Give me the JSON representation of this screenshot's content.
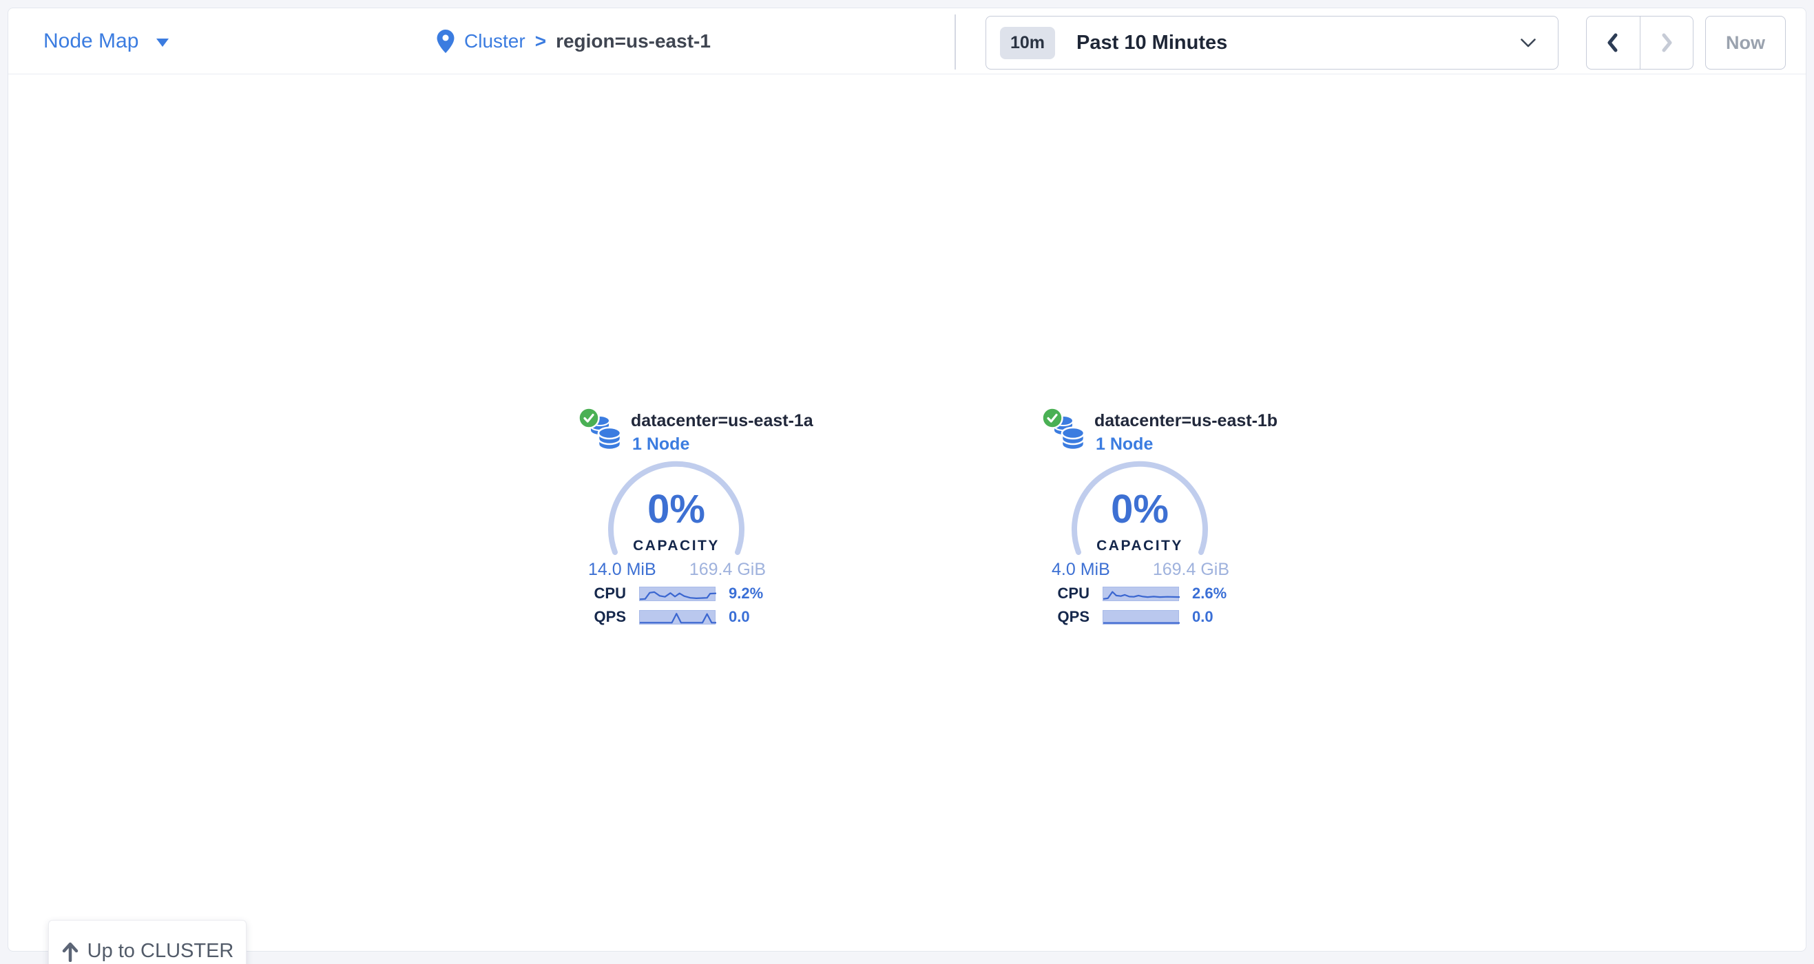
{
  "header": {
    "view_selector": {
      "label": "Node Map"
    },
    "breadcrumb": {
      "root": "Cluster",
      "separator": ">",
      "current": "region=us-east-1"
    },
    "time_range": {
      "badge": "10m",
      "label": "Past 10 Minutes"
    },
    "now_button": "Now"
  },
  "datacenters": [
    {
      "name": "datacenter=us-east-1a",
      "nodes": "1 Node",
      "status": "healthy",
      "capacity": {
        "percent": "0%",
        "label": "CAPACITY",
        "used": "14.0 MiB",
        "total": "169.4 GiB"
      },
      "metrics": [
        {
          "label": "CPU",
          "value": "9.2%",
          "spark": [
            [
              0,
              88
            ],
            [
              7,
              85
            ],
            [
              13,
              35
            ],
            [
              19,
              30
            ],
            [
              26,
              60
            ],
            [
              33,
              68
            ],
            [
              40,
              38
            ],
            [
              46,
              66
            ],
            [
              52,
              40
            ],
            [
              58,
              62
            ],
            [
              66,
              76
            ],
            [
              74,
              80
            ],
            [
              82,
              78
            ],
            [
              88,
              76
            ],
            [
              92,
              42
            ],
            [
              100,
              40
            ]
          ]
        },
        {
          "label": "QPS",
          "value": "0.0",
          "spark": [
            [
              0,
              88
            ],
            [
              42,
              88
            ],
            [
              48,
              15
            ],
            [
              54,
              88
            ],
            [
              82,
              88
            ],
            [
              88,
              18
            ],
            [
              94,
              88
            ],
            [
              100,
              88
            ]
          ]
        }
      ]
    },
    {
      "name": "datacenter=us-east-1b",
      "nodes": "1 Node",
      "status": "healthy",
      "capacity": {
        "percent": "0%",
        "label": "CAPACITY",
        "used": "4.0 MiB",
        "total": "169.4 GiB"
      },
      "metrics": [
        {
          "label": "CPU",
          "value": "2.6%",
          "spark": [
            [
              0,
              85
            ],
            [
              6,
              80
            ],
            [
              12,
              28
            ],
            [
              17,
              58
            ],
            [
              23,
              62
            ],
            [
              28,
              52
            ],
            [
              34,
              66
            ],
            [
              40,
              68
            ],
            [
              46,
              58
            ],
            [
              52,
              66
            ],
            [
              58,
              70
            ],
            [
              66,
              66
            ],
            [
              74,
              70
            ],
            [
              84,
              68
            ],
            [
              100,
              70
            ]
          ]
        },
        {
          "label": "QPS",
          "value": "0.0",
          "spark": [
            [
              0,
              90
            ],
            [
              100,
              90
            ]
          ]
        }
      ]
    }
  ],
  "up_button": {
    "label": "Up to CLUSTER"
  },
  "colors": {
    "accent_blue": "#3b7ce0",
    "healthy_green": "#4ab054",
    "arc": "#c0cded",
    "spark_fill": "#bac8ee",
    "spark_line": "#3a66d0",
    "muted_total": "#9fb2dd",
    "dark_navy": "#15274b"
  }
}
